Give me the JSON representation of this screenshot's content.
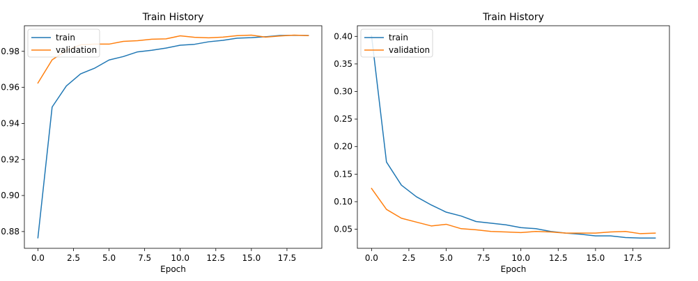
{
  "colors": {
    "train": "#1f77b4",
    "validation": "#ff7f0e"
  },
  "chart_data": [
    {
      "type": "line",
      "title": "Train History",
      "xlabel": "Epoch",
      "ylabel": "",
      "xlim": [
        -0.95,
        19.95
      ],
      "ylim": [
        0.8707,
        0.9942
      ],
      "xticks": [
        0.0,
        2.5,
        5.0,
        7.5,
        10.0,
        12.5,
        15.0,
        17.5
      ],
      "xtick_labels": [
        "0.0",
        "2.5",
        "5.0",
        "7.5",
        "10.0",
        "12.5",
        "15.0",
        "17.5"
      ],
      "yticks": [
        0.88,
        0.9,
        0.92,
        0.94,
        0.96,
        0.98
      ],
      "ytick_labels": [
        "0.88",
        "0.90",
        "0.92",
        "0.94",
        "0.96",
        "0.98"
      ],
      "grid": false,
      "legend": "top-left",
      "x": [
        0,
        1,
        2,
        3,
        4,
        5,
        6,
        7,
        8,
        9,
        10,
        11,
        12,
        13,
        14,
        15,
        16,
        17,
        18,
        19
      ],
      "series": [
        {
          "name": "train",
          "color": "#1f77b4",
          "values": [
            0.8765,
            0.9491,
            0.9608,
            0.9675,
            0.9707,
            0.9752,
            0.9771,
            0.9797,
            0.9806,
            0.9818,
            0.9834,
            0.9839,
            0.9853,
            0.9861,
            0.9873,
            0.9876,
            0.9881,
            0.9888,
            0.9889,
            0.9888
          ]
        },
        {
          "name": "validation",
          "color": "#ff7f0e",
          "values": [
            0.9624,
            0.9753,
            0.9805,
            0.9836,
            0.984,
            0.984,
            0.9855,
            0.9859,
            0.9867,
            0.9869,
            0.9886,
            0.9878,
            0.9875,
            0.9879,
            0.9887,
            0.989,
            0.9879,
            0.9885,
            0.989,
            0.9887
          ]
        }
      ]
    },
    {
      "type": "line",
      "title": "Train History",
      "xlabel": "Epoch",
      "ylabel": "",
      "xlim": [
        -0.95,
        19.95
      ],
      "ylim": [
        0.0154,
        0.4193
      ],
      "xticks": [
        0.0,
        2.5,
        5.0,
        7.5,
        10.0,
        12.5,
        15.0,
        17.5
      ],
      "xtick_labels": [
        "0.0",
        "2.5",
        "5.0",
        "7.5",
        "10.0",
        "12.5",
        "15.0",
        "17.5"
      ],
      "yticks": [
        0.05,
        0.1,
        0.15,
        0.2,
        0.25,
        0.3,
        0.35,
        0.4
      ],
      "ytick_labels": [
        "0.05",
        "0.10",
        "0.15",
        "0.20",
        "0.25",
        "0.30",
        "0.35",
        "0.40"
      ],
      "grid": false,
      "legend": "top-left",
      "x": [
        0,
        1,
        2,
        3,
        4,
        5,
        6,
        7,
        8,
        9,
        10,
        11,
        12,
        13,
        14,
        15,
        16,
        17,
        18,
        19
      ],
      "series": [
        {
          "name": "train",
          "color": "#1f77b4",
          "values": [
            0.401,
            0.172,
            0.13,
            0.109,
            0.094,
            0.081,
            0.074,
            0.064,
            0.061,
            0.058,
            0.053,
            0.051,
            0.046,
            0.043,
            0.041,
            0.038,
            0.038,
            0.035,
            0.034,
            0.034
          ]
        },
        {
          "name": "validation",
          "color": "#ff7f0e",
          "values": [
            0.124,
            0.086,
            0.07,
            0.063,
            0.056,
            0.059,
            0.051,
            0.049,
            0.046,
            0.045,
            0.044,
            0.046,
            0.045,
            0.043,
            0.043,
            0.043,
            0.045,
            0.046,
            0.042,
            0.043
          ]
        }
      ]
    }
  ]
}
